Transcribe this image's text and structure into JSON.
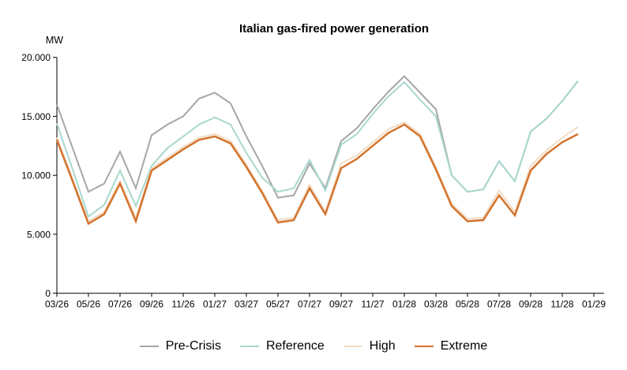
{
  "page": {
    "background": "#ffffff"
  },
  "chart_data": {
    "type": "line",
    "title": "Italian gas-fired power generation",
    "ylabel": "MW",
    "xlabel": "",
    "ylim": [
      0,
      20000
    ],
    "grid": false,
    "legend_position": "bottom",
    "y_ticks": [
      {
        "label": "20.000",
        "value": 20000
      },
      {
        "label": "15.000",
        "value": 15000
      },
      {
        "label": "10.000",
        "value": 10000
      },
      {
        "label": "5.000",
        "value": 5000
      },
      {
        "label": "0",
        "value": 0
      }
    ],
    "x_tick_labels": [
      "03/26",
      "05/26",
      "07/26",
      "09/26",
      "11/26",
      "01/27",
      "03/27",
      "05/27",
      "07/27",
      "09/27",
      "11/27",
      "01/28",
      "03/28",
      "05/28",
      "07/28",
      "09/28",
      "11/28",
      "01/29"
    ],
    "categories": [
      "03/26",
      "04/26",
      "05/26",
      "06/26",
      "07/26",
      "08/26",
      "09/26",
      "10/26",
      "11/26",
      "12/26",
      "01/27",
      "02/27",
      "03/27",
      "04/27",
      "05/27",
      "06/27",
      "07/27",
      "08/27",
      "09/27",
      "10/27",
      "11/27",
      "12/27",
      "01/28",
      "02/28",
      "03/28",
      "04/28",
      "05/28",
      "06/28",
      "07/28",
      "08/28",
      "09/28",
      "10/28",
      "11/28",
      "12/28"
    ],
    "unit": "MW",
    "series": [
      {
        "name": "Pre-Crisis",
        "color": "#a6a6a6",
        "width": 2,
        "values": [
          16000,
          12300,
          8600,
          9300,
          12000,
          8900,
          13400,
          14300,
          15000,
          16500,
          17000,
          16100,
          13300,
          10800,
          8100,
          8300,
          11000,
          8900,
          12900,
          14000,
          15600,
          17100,
          18400,
          17000,
          15600,
          10000,
          8600,
          8800,
          11200,
          9500,
          13700,
          14800,
          16300,
          18000
        ]
      },
      {
        "name": "Reference",
        "color": "#a8d8cf",
        "width": 2,
        "values": [
          14400,
          10500,
          6500,
          7500,
          10400,
          7400,
          10800,
          12300,
          13300,
          14300,
          14900,
          14300,
          11900,
          9800,
          8600,
          8900,
          11300,
          8700,
          12600,
          13500,
          15200,
          16700,
          17900,
          16400,
          15000,
          10000,
          8600,
          8800,
          11200,
          9500,
          13700,
          14800,
          16300,
          18000
        ]
      },
      {
        "name": "High",
        "color": "#f2dcc5",
        "width": 2,
        "values": [
          13200,
          9700,
          6100,
          6900,
          9500,
          6400,
          10600,
          11500,
          12400,
          13200,
          13500,
          12900,
          10900,
          8700,
          6200,
          6400,
          9200,
          6900,
          11000,
          11700,
          12800,
          13900,
          14500,
          13500,
          10700,
          7600,
          6300,
          6400,
          8700,
          6900,
          10800,
          12100,
          13200,
          14100
        ]
      },
      {
        "name": "Extreme",
        "color": "#d4732d",
        "width": 2.5,
        "values": [
          13000,
          9500,
          5900,
          6700,
          9300,
          6100,
          10400,
          11300,
          12200,
          13000,
          13300,
          12700,
          10700,
          8500,
          6000,
          6200,
          8900,
          6700,
          10600,
          11400,
          12500,
          13600,
          14300,
          13300,
          10500,
          7400,
          6100,
          6200,
          8300,
          6600,
          10400,
          11800,
          12800,
          13500
        ]
      }
    ]
  }
}
